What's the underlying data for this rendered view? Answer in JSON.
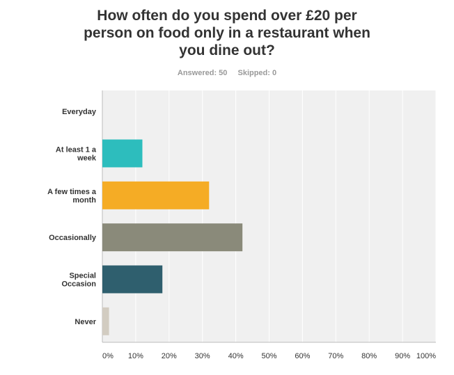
{
  "title": "How often do you spend over £20 per person on food only in a restaurant when you dine out?",
  "answered_text": "Answered: 50",
  "skipped_text": "Skipped: 0",
  "colors": {
    "plot_bg": "#f0f0f0",
    "grid": "#ffffff",
    "axis": "#bbbbbb",
    "label": "#333333",
    "tick": "#333333"
  },
  "chart_data": {
    "type": "bar",
    "orientation": "horizontal",
    "title": "How often do you spend over £20 per person on food only in a restaurant when you dine out?",
    "categories": [
      "Everyday",
      "At least 1 a week",
      "A few times a month",
      "Occasionally",
      "Special Occasion",
      "Never"
    ],
    "category_lines": [
      [
        "Everyday"
      ],
      [
        "At least 1 a",
        "week"
      ],
      [
        "A few times a",
        "month"
      ],
      [
        "Occasionally"
      ],
      [
        "Special",
        "Occasion"
      ],
      [
        "Never"
      ]
    ],
    "values": [
      0,
      12,
      32,
      42,
      18,
      2
    ],
    "colors": [
      "#2dbdbd",
      "#2dbdbd",
      "#f5ac25",
      "#8a8a7a",
      "#2f5f6e",
      "#d2ccc1"
    ],
    "xlim": [
      0,
      100
    ],
    "xticks": [
      0,
      10,
      20,
      30,
      40,
      50,
      60,
      70,
      80,
      90,
      100
    ],
    "xtick_labels": [
      "0%",
      "10%",
      "20%",
      "30%",
      "40%",
      "50%",
      "60%",
      "70%",
      "80%",
      "90%",
      "100%"
    ],
    "grid": true,
    "xlabel": "",
    "ylabel": ""
  }
}
